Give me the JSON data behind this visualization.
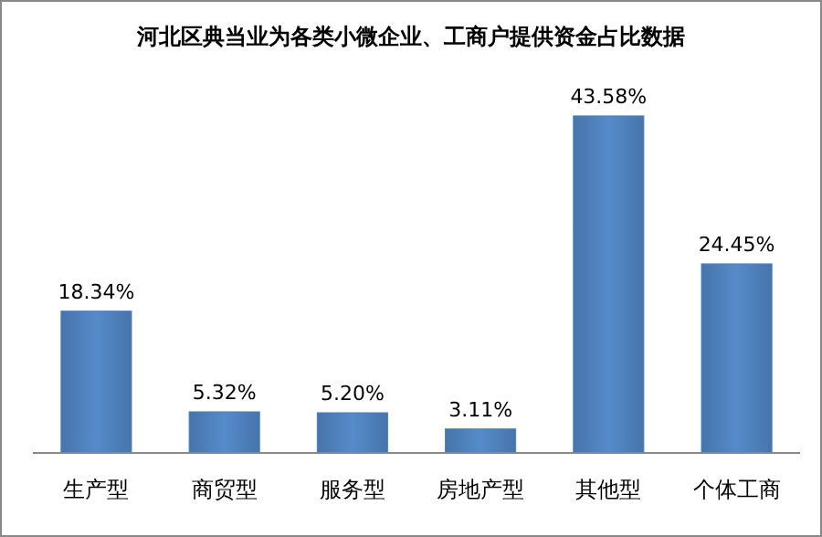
{
  "chart_data": {
    "type": "bar",
    "title": "河北区典当业为各类小微企业、工商户提供资金占比数据",
    "categories": [
      "生产型",
      "商贸型",
      "服务型",
      "房地产型",
      "其他型",
      "个体工商"
    ],
    "values": [
      18.34,
      5.32,
      5.2,
      3.11,
      43.58,
      24.45
    ],
    "value_labels": [
      "18.34%",
      "5.32%",
      "5.20%",
      "3.11%",
      "43.58%",
      "24.45%"
    ],
    "color": "#4f81bd"
  }
}
